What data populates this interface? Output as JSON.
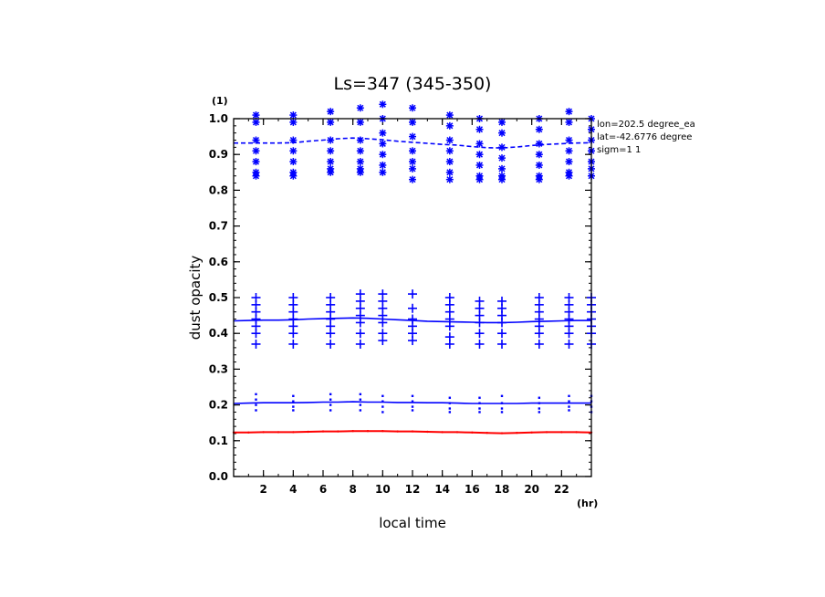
{
  "chart_data": {
    "type": "line",
    "title": "Ls=347 (345-350)",
    "xlabel": "local time",
    "ylabel": "dust opacity",
    "x_unit": "(hr)",
    "y_unit": "(1)",
    "xlim": [
      0,
      24
    ],
    "ylim": [
      0.0,
      1.0
    ],
    "x_ticks": [
      2,
      4,
      6,
      8,
      10,
      12,
      14,
      16,
      18,
      20,
      22
    ],
    "y_ticks": [
      0.0,
      0.1,
      0.2,
      0.3,
      0.4,
      0.5,
      0.6,
      0.7,
      0.8,
      0.9,
      1.0
    ],
    "annotations": [
      "lon=202.5 degree_ea",
      "lat=-42.6776 degree",
      "sigm=1 1"
    ],
    "x": [
      0,
      1,
      2,
      3,
      4,
      5,
      6,
      7,
      8,
      9,
      10,
      11,
      12,
      13,
      14,
      15,
      16,
      17,
      18,
      19,
      20,
      21,
      22,
      23,
      24
    ],
    "series": [
      {
        "style": "solid-red",
        "color": "#ff0000",
        "values": [
          0.123,
          0.123,
          0.124,
          0.124,
          0.124,
          0.125,
          0.126,
          0.126,
          0.127,
          0.127,
          0.127,
          0.126,
          0.126,
          0.125,
          0.124,
          0.124,
          0.123,
          0.122,
          0.121,
          0.122,
          0.123,
          0.124,
          0.124,
          0.124,
          0.123
        ]
      },
      {
        "style": "solid-blue",
        "color": "#0000ff",
        "values": [
          0.204,
          0.205,
          0.206,
          0.206,
          0.206,
          0.207,
          0.208,
          0.208,
          0.209,
          0.208,
          0.208,
          0.207,
          0.207,
          0.206,
          0.206,
          0.205,
          0.204,
          0.204,
          0.204,
          0.204,
          0.205,
          0.205,
          0.205,
          0.205,
          0.205
        ],
        "markers": {
          "symbol": "dot",
          "x": [
            1.5,
            4.0,
            6.5,
            8.5,
            10.0,
            12.0,
            14.5,
            16.5,
            18.0,
            20.5,
            22.5,
            24.0
          ],
          "y": [
            [
              0.23,
              0.215,
              0.2,
              0.185
            ],
            [
              0.225,
              0.21,
              0.195,
              0.185
            ],
            [
              0.23,
              0.215,
              0.2,
              0.185
            ],
            [
              0.23,
              0.215,
              0.2,
              0.185
            ],
            [
              0.225,
              0.21,
              0.195,
              0.18
            ],
            [
              0.225,
              0.21,
              0.195,
              0.185
            ],
            [
              0.22,
              0.205,
              0.19,
              0.18
            ],
            [
              0.22,
              0.205,
              0.19,
              0.18
            ],
            [
              0.225,
              0.205,
              0.19,
              0.18
            ],
            [
              0.22,
              0.205,
              0.19,
              0.18
            ],
            [
              0.225,
              0.21,
              0.195,
              0.185
            ],
            [
              0.225,
              0.21,
              0.195,
              0.18
            ]
          ]
        }
      },
      {
        "style": "solid-blue",
        "color": "#0000ff",
        "values": [
          0.435,
          0.436,
          0.437,
          0.437,
          0.438,
          0.44,
          0.441,
          0.442,
          0.443,
          0.442,
          0.44,
          0.438,
          0.436,
          0.434,
          0.433,
          0.432,
          0.431,
          0.43,
          0.43,
          0.431,
          0.433,
          0.434,
          0.435,
          0.436,
          0.436
        ],
        "markers": {
          "symbol": "plus",
          "x": [
            1.5,
            4.0,
            6.5,
            8.5,
            10.0,
            12.0,
            14.5,
            16.5,
            18.0,
            20.5,
            22.5,
            24.0
          ],
          "y": [
            [
              0.5,
              0.48,
              0.46,
              0.44,
              0.42,
              0.4,
              0.37
            ],
            [
              0.5,
              0.48,
              0.46,
              0.44,
              0.42,
              0.4,
              0.37
            ],
            [
              0.5,
              0.48,
              0.46,
              0.44,
              0.42,
              0.4,
              0.37
            ],
            [
              0.51,
              0.49,
              0.47,
              0.45,
              0.43,
              0.4,
              0.37
            ],
            [
              0.51,
              0.49,
              0.47,
              0.45,
              0.43,
              0.4,
              0.38
            ],
            [
              0.51,
              0.47,
              0.44,
              0.42,
              0.4,
              0.38
            ],
            [
              0.5,
              0.48,
              0.46,
              0.44,
              0.42,
              0.39,
              0.37
            ],
            [
              0.49,
              0.47,
              0.45,
              0.43,
              0.4,
              0.37
            ],
            [
              0.49,
              0.47,
              0.45,
              0.43,
              0.4,
              0.37
            ],
            [
              0.5,
              0.48,
              0.46,
              0.44,
              0.42,
              0.4,
              0.37
            ],
            [
              0.5,
              0.48,
              0.46,
              0.44,
              0.42,
              0.4,
              0.37
            ],
            [
              0.5,
              0.48,
              0.46,
              0.44,
              0.42,
              0.4,
              0.37
            ]
          ]
        }
      },
      {
        "style": "dashed-blue",
        "color": "#0000ff",
        "values": [
          0.932,
          0.932,
          0.932,
          0.932,
          0.933,
          0.937,
          0.94,
          0.944,
          0.946,
          0.944,
          0.941,
          0.937,
          0.934,
          0.931,
          0.928,
          0.926,
          0.922,
          0.919,
          0.918,
          0.921,
          0.925,
          0.928,
          0.93,
          0.932,
          0.933
        ],
        "markers": {
          "symbol": "asterisk",
          "x": [
            1.5,
            4.0,
            6.5,
            8.5,
            10.0,
            12.0,
            14.5,
            16.5,
            18.0,
            20.5,
            22.5,
            24.0
          ],
          "y": [
            [
              1.01,
              0.99,
              0.94,
              0.91,
              0.88,
              0.85,
              0.84
            ],
            [
              1.01,
              0.99,
              0.94,
              0.91,
              0.88,
              0.85,
              0.84
            ],
            [
              1.02,
              0.99,
              0.94,
              0.91,
              0.88,
              0.86,
              0.85
            ],
            [
              1.03,
              0.99,
              0.94,
              0.91,
              0.88,
              0.86,
              0.85
            ],
            [
              1.04,
              1.0,
              0.96,
              0.93,
              0.9,
              0.87,
              0.85
            ],
            [
              1.03,
              0.99,
              0.95,
              0.91,
              0.88,
              0.86,
              0.83
            ],
            [
              1.01,
              0.98,
              0.94,
              0.91,
              0.88,
              0.85,
              0.83
            ],
            [
              1.0,
              0.97,
              0.93,
              0.9,
              0.87,
              0.84,
              0.83
            ],
            [
              0.99,
              0.96,
              0.92,
              0.89,
              0.86,
              0.84,
              0.83
            ],
            [
              1.0,
              0.97,
              0.93,
              0.9,
              0.87,
              0.84,
              0.83
            ],
            [
              1.02,
              0.99,
              0.94,
              0.91,
              0.88,
              0.85,
              0.84
            ],
            [
              1.0,
              0.97,
              0.94,
              0.91,
              0.88,
              0.86,
              0.84
            ]
          ]
        }
      }
    ]
  }
}
